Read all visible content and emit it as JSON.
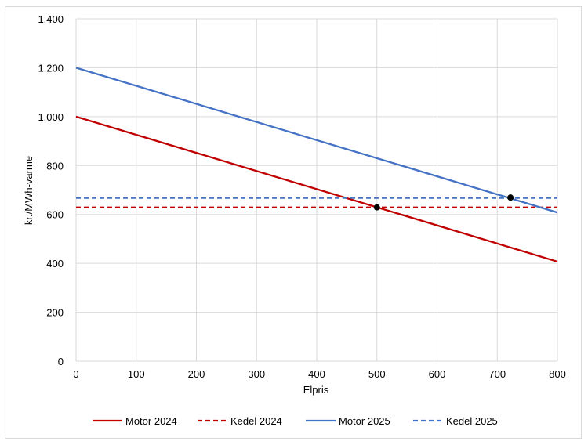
{
  "chart_data": {
    "type": "line",
    "title": "",
    "xlabel": "Elpris",
    "ylabel": "kr./MWh-varme",
    "xlim": [
      0,
      800
    ],
    "ylim": [
      0,
      1400
    ],
    "x_ticks": [
      0,
      100,
      200,
      300,
      400,
      500,
      600,
      700,
      800
    ],
    "y_ticks": [
      0,
      200,
      400,
      600,
      800,
      1000,
      1200,
      1400
    ],
    "x_tick_labels": [
      "0",
      "100",
      "200",
      "300",
      "400",
      "500",
      "600",
      "700",
      "800"
    ],
    "y_tick_labels": [
      "0",
      "200",
      "400",
      "600",
      "800",
      "1.000",
      "1.200",
      "1.400"
    ],
    "grid": true,
    "legend_position": "bottom",
    "series": [
      {
        "name": "Motor 2024",
        "color": "#c00000",
        "style": "solid",
        "x": [
          0,
          800
        ],
        "y": [
          1000,
          407
        ]
      },
      {
        "name": "Kedel 2024",
        "color": "#c00000",
        "style": "dashed",
        "x": [
          0,
          800
        ],
        "y": [
          629,
          629
        ]
      },
      {
        "name": "Motor 2025",
        "color": "#4472c4",
        "style": "solid",
        "x": [
          0,
          800
        ],
        "y": [
          1200,
          608
        ]
      },
      {
        "name": "Kedel 2025",
        "color": "#4472c4",
        "style": "dashed",
        "x": [
          0,
          800
        ],
        "y": [
          667,
          667
        ]
      }
    ],
    "markers": [
      {
        "x": 500,
        "y": 629,
        "color": "#000000"
      },
      {
        "x": 722,
        "y": 669,
        "color": "#000000"
      }
    ]
  }
}
